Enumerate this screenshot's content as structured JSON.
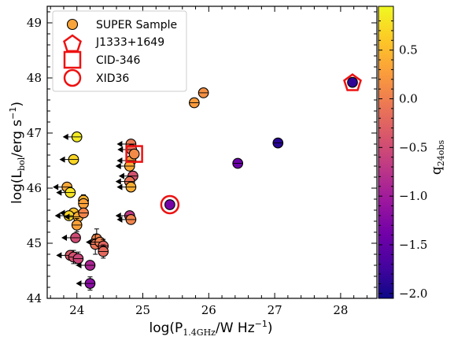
{
  "chart_data": {
    "type": "scatter",
    "xlabel": "log(P",
    "xlabel_sub": "1.4GHz",
    "xlabel_tail": "/W Hz",
    "xlabel_sup": "−1",
    "xlabel_close": ")",
    "ylabel": "log(L",
    "ylabel_sub": "bol",
    "ylabel_tail": "/erg s",
    "ylabel_sup": "−1",
    "ylabel_close": ")",
    "colorbar_label": "q",
    "colorbar_label_sub": "24obs",
    "xlim": [
      23.55,
      28.55
    ],
    "ylim": [
      44.0,
      49.3
    ],
    "xticks": [
      24,
      25,
      26,
      27,
      28
    ],
    "yticks": [
      44,
      45,
      46,
      47,
      48,
      49
    ],
    "colorbar_range": [
      -2.05,
      0.95
    ],
    "colorbar_ticks": [
      0.5,
      0.0,
      -0.5,
      -1.0,
      -1.5,
      -2.0
    ],
    "colorbar_tick_labels": [
      "0.5",
      "0.0",
      "−0.5",
      "−1.0",
      "−1.5",
      "−2.0"
    ],
    "colormap": [
      "#0d0887",
      "#46039f",
      "#7201a8",
      "#9c179e",
      "#bd3786",
      "#d8576b",
      "#ed7953",
      "#fb9f3a",
      "#fdca26",
      "#f0f921"
    ],
    "legend_position": "upper left",
    "legend": [
      {
        "label": "SUPER Sample",
        "marker": "circle",
        "color": "#f7a43a"
      },
      {
        "label": "J1333+1649",
        "marker": "pentagon",
        "color": "#ee1111"
      },
      {
        "label": "CID-346",
        "marker": "square",
        "color": "#ee1111"
      },
      {
        "label": "XID36",
        "marker": "circle-open",
        "color": "#ee1111"
      }
    ],
    "series": [
      {
        "name": "SUPER Sample",
        "points": [
          {
            "x": 24.0,
            "y": 46.93,
            "q": 0.85,
            "upper_x": true
          },
          {
            "x": 23.95,
            "y": 46.52,
            "q": 0.7,
            "upper_x": true
          },
          {
            "x": 23.85,
            "y": 46.02,
            "q": 0.35,
            "upper_x": true
          },
          {
            "x": 23.9,
            "y": 45.92,
            "q": 0.8,
            "upper_x": true
          },
          {
            "x": 24.1,
            "y": 45.78,
            "q": 0.45,
            "err_y": 0.1
          },
          {
            "x": 24.1,
            "y": 45.72,
            "q": 0.3
          },
          {
            "x": 23.95,
            "y": 45.55,
            "q": 0.55,
            "upper_x": true
          },
          {
            "x": 23.88,
            "y": 45.5,
            "q": 0.7,
            "upper_x": true
          },
          {
            "x": 24.02,
            "y": 45.48,
            "q": 0.4,
            "upper_x": true
          },
          {
            "x": 24.1,
            "y": 45.55,
            "q": 0.05
          },
          {
            "x": 24.0,
            "y": 45.33,
            "q": 0.3,
            "err_y": 0.12
          },
          {
            "x": 23.98,
            "y": 45.1,
            "q": -0.5,
            "upper_x": true
          },
          {
            "x": 24.3,
            "y": 45.08,
            "q": 0.05,
            "err_y": 0.18
          },
          {
            "x": 24.28,
            "y": 44.98,
            "q": -0.1,
            "err_y": 0.18
          },
          {
            "x": 24.35,
            "y": 45.02,
            "q": 0.0,
            "upper_x": true
          },
          {
            "x": 24.4,
            "y": 44.95,
            "q": -0.25,
            "err_y": 0.12
          },
          {
            "x": 24.4,
            "y": 44.85,
            "q": -0.2,
            "err_y": 0.12
          },
          {
            "x": 23.9,
            "y": 44.78,
            "q": -0.35,
            "upper_x": true
          },
          {
            "x": 23.95,
            "y": 44.75,
            "q": -0.45,
            "err_y": 0.12
          },
          {
            "x": 24.02,
            "y": 44.72,
            "q": -0.55,
            "err_y": 0.12
          },
          {
            "x": 24.2,
            "y": 44.6,
            "q": -0.9,
            "upper_x": true
          },
          {
            "x": 24.2,
            "y": 44.27,
            "q": -1.2,
            "upper_x": true,
            "err_y": 0.12
          },
          {
            "x": 24.82,
            "y": 46.8,
            "q": -0.05,
            "upper_x": true
          },
          {
            "x": 24.83,
            "y": 46.7,
            "q": -0.15,
            "upper_x": true
          },
          {
            "x": 24.82,
            "y": 46.5,
            "q": 0.25,
            "upper_x": true
          },
          {
            "x": 24.8,
            "y": 46.4,
            "q": 0.35,
            "upper_x": true
          },
          {
            "x": 24.85,
            "y": 46.22,
            "q": -0.45,
            "upper_x": true
          },
          {
            "x": 24.8,
            "y": 46.12,
            "q": -0.1,
            "upper_x": true
          },
          {
            "x": 24.82,
            "y": 46.02,
            "q": 0.4,
            "upper_x": true
          },
          {
            "x": 24.8,
            "y": 45.5,
            "q": -0.7,
            "upper_x": true
          },
          {
            "x": 24.82,
            "y": 45.43,
            "q": 0.05,
            "upper_x": true
          },
          {
            "x": 25.78,
            "y": 47.55,
            "q": 0.25,
            "err_y": 0.08
          },
          {
            "x": 25.92,
            "y": 47.73,
            "q": 0.15,
            "err_y": 0.08
          },
          {
            "x": 26.44,
            "y": 46.45,
            "q": -1.45
          },
          {
            "x": 27.05,
            "y": 46.82,
            "q": -1.9
          }
        ]
      },
      {
        "name": "J1333+1649",
        "points": [
          {
            "x": 28.18,
            "y": 47.92,
            "q": -1.85
          }
        ]
      },
      {
        "name": "CID-346",
        "points": [
          {
            "x": 24.87,
            "y": 46.62,
            "q": 0.1
          }
        ]
      },
      {
        "name": "XID36",
        "points": [
          {
            "x": 25.41,
            "y": 45.7,
            "q": -1.35
          }
        ]
      }
    ]
  }
}
